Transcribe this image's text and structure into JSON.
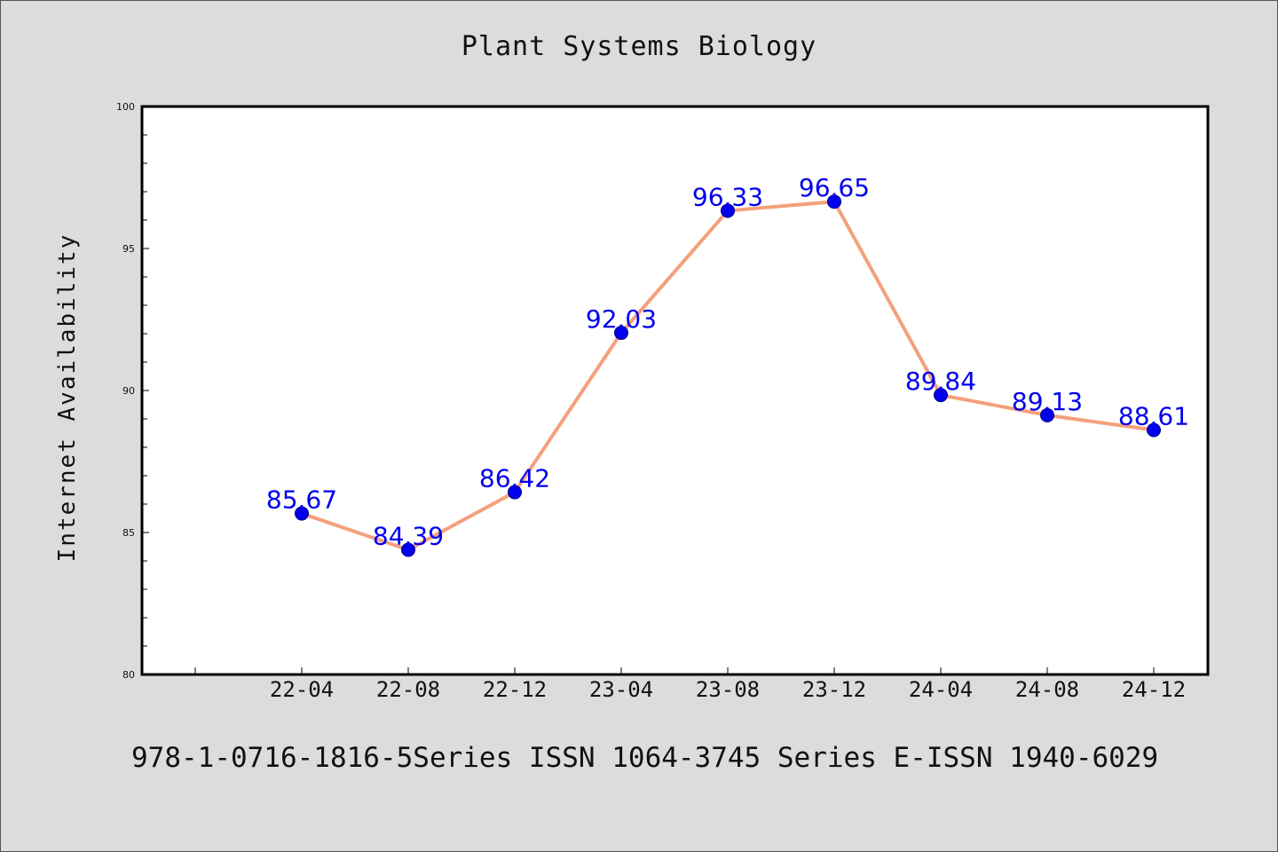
{
  "chart_data": {
    "type": "line",
    "title": "Plant Systems Biology",
    "xlabel": "",
    "ylabel": "Internet Availability",
    "categories": [
      "22-04",
      "22-08",
      "22-12",
      "23-04",
      "23-08",
      "23-12",
      "24-04",
      "24-08",
      "24-12"
    ],
    "series": [
      {
        "values": [
          85.67,
          84.39,
          86.42,
          92.03,
          96.33,
          96.65,
          89.84,
          89.13,
          88.61
        ]
      }
    ],
    "data_labels": [
      "85.67",
      "84.39",
      "86.42",
      "92.03",
      "96.33",
      "96.65",
      "89.84",
      "89.13",
      "88.61"
    ],
    "ylim": [
      80,
      100
    ],
    "yticks": [
      "80",
      "85",
      "90",
      "95",
      "100"
    ],
    "grid": false,
    "line_color": "#f4a07c",
    "marker_color": "#0000ee",
    "label_color": "#0000ee"
  },
  "footer": {
    "text": "978-1-0716-1816-5Series ISSN 1064-3745 Series E-ISSN 1940-6029"
  }
}
